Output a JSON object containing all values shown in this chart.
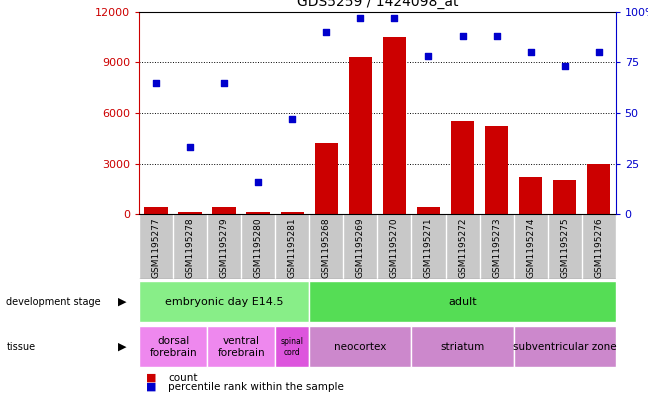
{
  "title": "GDS5259 / 1424098_at",
  "samples": [
    "GSM1195277",
    "GSM1195278",
    "GSM1195279",
    "GSM1195280",
    "GSM1195281",
    "GSM1195268",
    "GSM1195269",
    "GSM1195270",
    "GSM1195271",
    "GSM1195272",
    "GSM1195273",
    "GSM1195274",
    "GSM1195275",
    "GSM1195276"
  ],
  "counts": [
    450,
    130,
    400,
    100,
    120,
    4200,
    9300,
    10500,
    400,
    5500,
    5200,
    2200,
    2000,
    3000
  ],
  "percentiles": [
    65,
    33,
    65,
    16,
    47,
    90,
    97,
    97,
    78,
    88,
    88,
    80,
    73,
    80
  ],
  "bar_color": "#cc0000",
  "dot_color": "#0000cc",
  "ylim_left": [
    0,
    12000
  ],
  "ylim_right": [
    0,
    100
  ],
  "yticks_left": [
    0,
    3000,
    6000,
    9000,
    12000
  ],
  "yticks_right": [
    0,
    25,
    50,
    75,
    100
  ],
  "development_stage_groups": [
    {
      "label": "embryonic day E14.5",
      "start": 0,
      "end": 4,
      "color": "#88ee88"
    },
    {
      "label": "adult",
      "start": 5,
      "end": 13,
      "color": "#55dd55"
    }
  ],
  "tissue_groups": [
    {
      "label": "dorsal\nforebrain",
      "start": 0,
      "end": 1,
      "color": "#ee88ee"
    },
    {
      "label": "ventral\nforebrain",
      "start": 2,
      "end": 3,
      "color": "#ee88ee"
    },
    {
      "label": "spinal\ncord",
      "start": 4,
      "end": 4,
      "color": "#dd55dd"
    },
    {
      "label": "neocortex",
      "start": 5,
      "end": 7,
      "color": "#cc88cc"
    },
    {
      "label": "striatum",
      "start": 8,
      "end": 10,
      "color": "#cc88cc"
    },
    {
      "label": "subventricular zone",
      "start": 11,
      "end": 13,
      "color": "#cc88cc"
    }
  ],
  "legend_count_color": "#cc0000",
  "legend_pct_color": "#0000cc",
  "ylabel_left_color": "#cc0000",
  "ylabel_right_color": "#0000cc"
}
